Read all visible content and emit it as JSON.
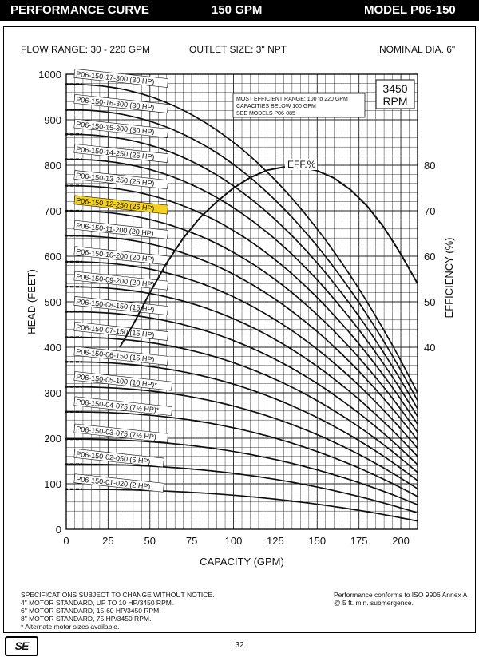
{
  "header": {
    "title": "PERFORMANCE CURVE",
    "flow": "150 GPM",
    "model": "MODEL  P06-150"
  },
  "info": {
    "flow_range": "FLOW RANGE: 30 - 220 GPM",
    "outlet": "OUTLET SIZE: 3\" NPT",
    "diameter": "NOMINAL DIA. 6\""
  },
  "colors": {
    "highlight": "#f7d21b",
    "ink": "#111111"
  },
  "chart_data": {
    "type": "line",
    "title": "",
    "xlabel": "CAPACITY (GPM)",
    "ylabel": "HEAD (FEET)",
    "y2label": "EFFICIENCY (%)",
    "x_ticks": [
      "0",
      "25",
      "50",
      "75",
      "100",
      "125",
      "150",
      "175",
      "200"
    ],
    "y_ticks": [
      "0",
      "100",
      "200",
      "300",
      "400",
      "500",
      "600",
      "700",
      "800",
      "900",
      "1000"
    ],
    "y2_ticks": [
      "40",
      "50",
      "60",
      "70",
      "80"
    ],
    "xlim": [
      0,
      210
    ],
    "ylim": [
      0,
      1000
    ],
    "y2lim": [
      0,
      100
    ],
    "grid": true,
    "speed_label_line1": "3450",
    "speed_label_line2": "RPM",
    "efficient_range_note": [
      "MOST EFFICIENT RANGE: 100 to 220 GPM",
      "CAPACITIES BELOW 100 GPM",
      "SEE MODELS  P06-085"
    ],
    "efficiency_label": "EFF.%",
    "highlighted_series": "P06-150-12-250 (25 HP)",
    "efficiency_curve": {
      "name": "EFF.%",
      "x": [
        32,
        40,
        50,
        60,
        70,
        80,
        90,
        100,
        110,
        120,
        130,
        140,
        150,
        160,
        170,
        180,
        190,
        200,
        210
      ],
      "y": [
        40,
        45,
        52,
        58.5,
        64,
        68.5,
        72,
        75,
        77.3,
        78.9,
        79.6,
        79.6,
        78.8,
        77.2,
        74.6,
        71,
        66.3,
        60.5,
        54
      ]
    },
    "series": [
      {
        "name": "P06-150-17-300 (30 HP)",
        "shutoff": 978,
        "end_head": 300
      },
      {
        "name": "P06-150-16-300 (30 HP)",
        "shutoff": 922,
        "end_head": 283
      },
      {
        "name": "P06-150-15-300 (30 HP)",
        "shutoff": 868,
        "end_head": 265
      },
      {
        "name": "P06-150-14-250 (25 HP)",
        "shutoff": 813,
        "end_head": 248
      },
      {
        "name": "P06-150-13-250 (25 HP)",
        "shutoff": 755,
        "end_head": 231
      },
      {
        "name": "P06-150-12-250 (25 HP)",
        "shutoff": 700,
        "end_head": 213
      },
      {
        "name": "P06-150-11-200 (20 HP)",
        "shutoff": 645,
        "end_head": 196
      },
      {
        "name": "P06-150-10-200 (20 HP)",
        "shutoff": 588,
        "end_head": 178
      },
      {
        "name": "P06-150-09-200 (20 HP)",
        "shutoff": 533,
        "end_head": 160
      },
      {
        "name": "P06-150-08-150 (15 HP)",
        "shutoff": 478,
        "end_head": 142
      },
      {
        "name": "P06-150-07-150 (15 HP)",
        "shutoff": 422,
        "end_head": 125
      },
      {
        "name": "P06-150-06-150 (15 HP)",
        "shutoff": 368,
        "end_head": 107
      },
      {
        "name": "P06-150-05-100 (10 HP)*",
        "shutoff": 313,
        "end_head": 89
      },
      {
        "name": "P06-150-04-075 (7½ HP)*",
        "shutoff": 258,
        "end_head": 72
      },
      {
        "name": "P06-150-03-075 (7½ HP)",
        "shutoff": 198,
        "end_head": 54
      },
      {
        "name": "P06-150-02-050 (5 HP)",
        "shutoff": 143,
        "end_head": 36
      },
      {
        "name": "P06-150-01-020 (2 HP)",
        "shutoff": 88,
        "end_head": 18
      }
    ]
  },
  "footer": {
    "notes": [
      "SPECIFICATIONS SUBJECT TO CHANGE WITHOUT NOTICE.",
      "4\" MOTOR STANDARD, UP TO 10 HP/3450 RPM.",
      "6\" MOTOR STANDARD, 15-60 HP/3450 RPM.",
      "8\" MOTOR STANDARD, 75 HP/3450 RPM.",
      "* Alternate motor sizes available."
    ],
    "iso": [
      "Performance conforms to ISO 9906 Annex A",
      "@ 5 ft. min. submergence."
    ],
    "logo": "SE",
    "page": "32"
  }
}
